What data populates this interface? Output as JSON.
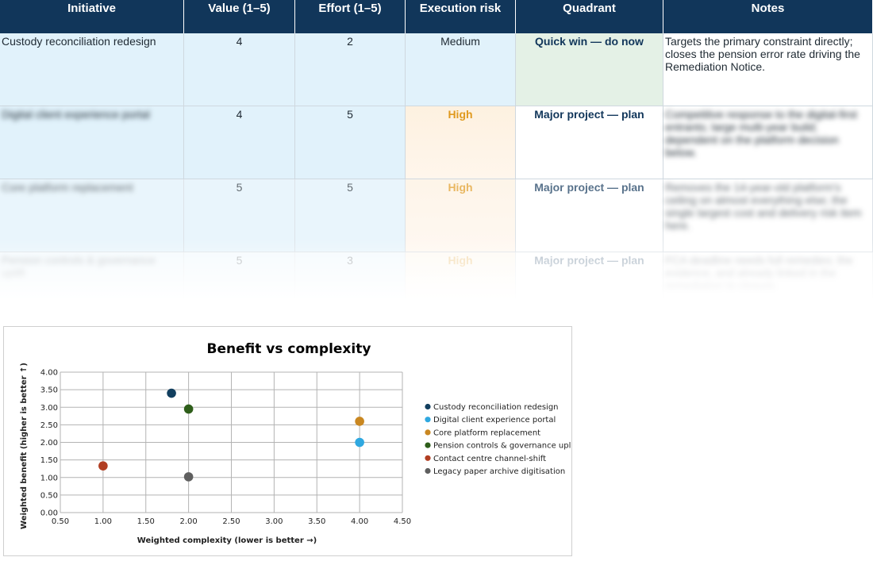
{
  "table": {
    "headers": [
      "Initiative",
      "Value (1–5)",
      "Effort (1–5)",
      "Execution risk",
      "Quadrant",
      "Notes"
    ],
    "rows": [
      {
        "initiative": "Custody reconciliation redesign",
        "value": "4",
        "effort": "2",
        "risk": "Medium",
        "quadrant": "Quick win — do now",
        "notes": "Targets the primary constraint directly; closes the pension error rate driving the Remediation Notice."
      },
      {
        "initiative": "Digital client experience portal",
        "value": "4",
        "effort": "5",
        "risk": "High",
        "quadrant": "Major project — plan",
        "notes": "Competitive response to the digital-first entrants; large multi-year build; dependent on the platform decision below."
      },
      {
        "initiative": "Core platform replacement",
        "value": "5",
        "effort": "5",
        "risk": "High",
        "quadrant": "Major project — plan",
        "notes": "Removes the 14-year-old platform's ceiling on almost everything else; the single largest cost and delivery risk item here."
      },
      {
        "initiative": "Pension controls & governance uplift",
        "value": "5",
        "effort": "3",
        "risk": "High",
        "quadrant": "Major project — plan",
        "notes": "FCA deadline needs full remedies; the evidence, and already linked in the remediation to closure."
      }
    ]
  },
  "chart_data": {
    "type": "scatter",
    "title": "Benefit vs complexity",
    "xlabel": "Weighted complexity (lower is better →)",
    "ylabel": "Weighted benefit (higher is better ↑)",
    "xlim": [
      0.5,
      4.5
    ],
    "ylim": [
      0.0,
      4.0
    ],
    "xticks": [
      "0.50",
      "1.00",
      "1.50",
      "2.00",
      "2.50",
      "3.00",
      "3.50",
      "4.00",
      "4.50"
    ],
    "yticks": [
      "0.00",
      "0.50",
      "1.00",
      "1.50",
      "2.00",
      "2.50",
      "3.00",
      "3.50",
      "4.00"
    ],
    "grid": true,
    "legend_position": "right",
    "series": [
      {
        "name": "Custody reconciliation redesign",
        "color": "#123f5f",
        "x": 1.8,
        "y": 3.4
      },
      {
        "name": "Digital client experience portal",
        "color": "#2fa8e0",
        "x": 4.0,
        "y": 2.0
      },
      {
        "name": "Core platform replacement",
        "color": "#c98721",
        "x": 4.0,
        "y": 2.6
      },
      {
        "name": "Pension controls & governance uplift",
        "color": "#2e5e1a",
        "x": 2.0,
        "y": 2.95
      },
      {
        "name": "Contact centre channel-shift",
        "color": "#b13e22",
        "x": 1.0,
        "y": 1.33
      },
      {
        "name": "Legacy paper archive digitisation",
        "color": "#5f5f5f",
        "x": 2.0,
        "y": 1.02
      }
    ]
  }
}
